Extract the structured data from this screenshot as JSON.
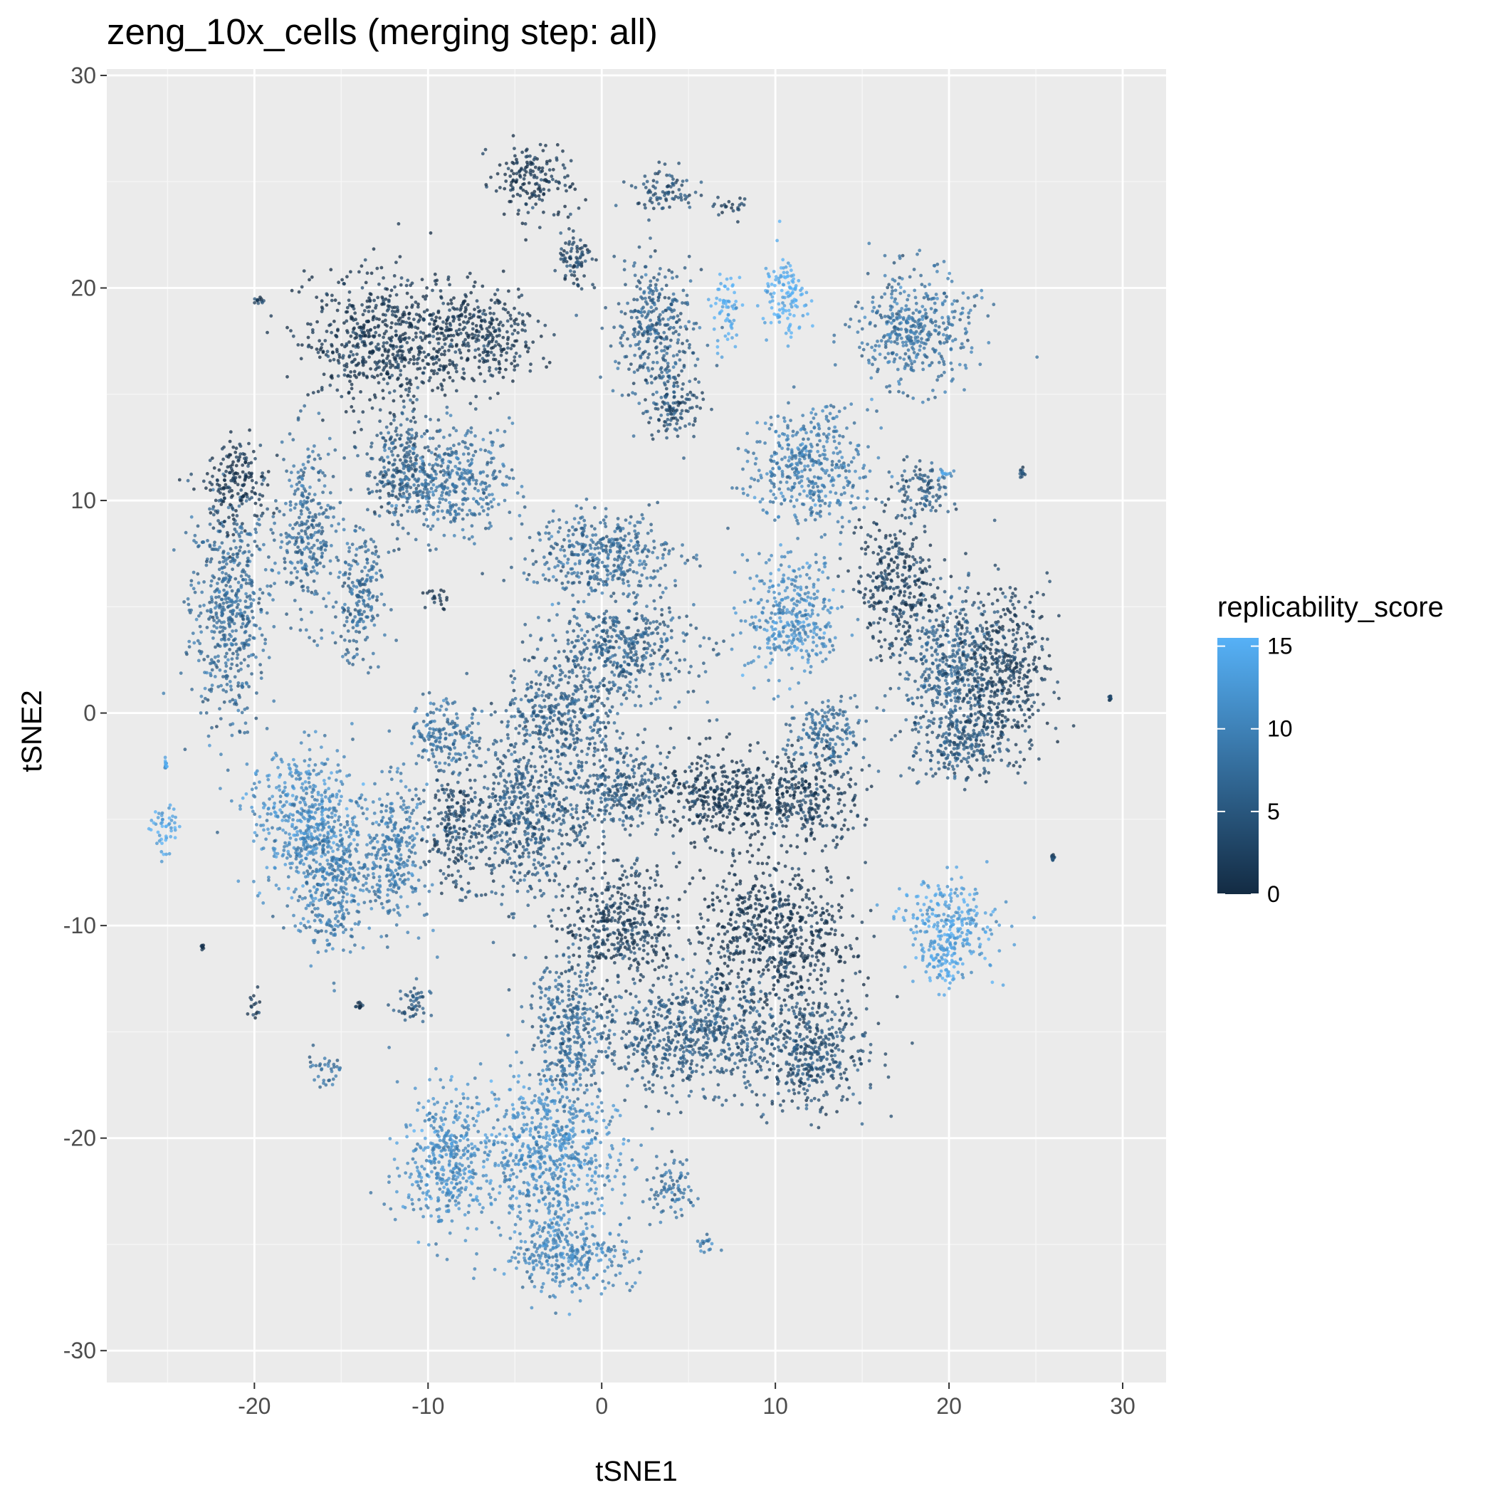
{
  "chart_data": {
    "type": "scatter",
    "title": "zeng_10x_cells (merging step: all)",
    "xlabel": "tSNE1",
    "ylabel": "tSNE2",
    "xlim": [
      -28.5,
      32.5
    ],
    "ylim": [
      -31.5,
      30.3
    ],
    "x_ticks": [
      -20,
      -10,
      0,
      10,
      20,
      30
    ],
    "x_tick_labels": [
      "-20",
      "-10",
      "0",
      "10",
      "20",
      "30"
    ],
    "y_ticks": [
      -30,
      -20,
      -10,
      0,
      10,
      20,
      30
    ],
    "y_tick_labels": [
      "-30",
      "-20",
      "-10",
      "0",
      "10",
      "20",
      "30"
    ],
    "grid": true,
    "background": "#ebebeb",
    "legend": {
      "title": "replicability_score",
      "position": "right",
      "type": "colorbar",
      "range": [
        0,
        15.5
      ],
      "ticks": [
        0,
        5,
        10,
        15
      ],
      "tick_labels": [
        "0",
        "5",
        "10",
        "15"
      ],
      "low_color": "#132b43",
      "high_color": "#56b1f7"
    },
    "clusters": [
      {
        "x": -25.2,
        "y": -5.4,
        "spread": [
          0.8,
          1.1
        ],
        "score": 14
      },
      {
        "x": -25.1,
        "y": -2.5,
        "spread": [
          0.1,
          0.3
        ],
        "score": 13
      },
      {
        "x": -21.5,
        "y": 5.0,
        "spread": [
          2.0,
          4.8
        ],
        "score": 7
      },
      {
        "x": -21.0,
        "y": 10.8,
        "spread": [
          1.6,
          2.0
        ],
        "score": 1
      },
      {
        "x": -17.0,
        "y": 8.5,
        "spread": [
          1.5,
          3.5
        ],
        "score": 7
      },
      {
        "x": -12.5,
        "y": 17.5,
        "spread": [
          4.0,
          2.8
        ],
        "score": 1
      },
      {
        "x": -7.0,
        "y": 17.8,
        "spread": [
          3.0,
          2.0
        ],
        "score": 1
      },
      {
        "x": -11.5,
        "y": 11.5,
        "spread": [
          2.0,
          2.5
        ],
        "score": 5
      },
      {
        "x": -8.5,
        "y": 11.0,
        "spread": [
          3.0,
          2.2
        ],
        "score": 8
      },
      {
        "x": -14.0,
        "y": 5.5,
        "spread": [
          1.3,
          2.8
        ],
        "score": 7
      },
      {
        "x": -9.5,
        "y": 5.4,
        "spread": [
          0.6,
          0.6
        ],
        "score": 1
      },
      {
        "x": -17.0,
        "y": -5.0,
        "spread": [
          3.0,
          3.0
        ],
        "score": 11
      },
      {
        "x": -15.5,
        "y": -8.0,
        "spread": [
          2.0,
          3.0
        ],
        "score": 9
      },
      {
        "x": -12.0,
        "y": -6.5,
        "spread": [
          1.8,
          3.0
        ],
        "score": 9
      },
      {
        "x": -8.5,
        "y": -5.5,
        "spread": [
          1.5,
          2.5
        ],
        "score": 3
      },
      {
        "x": -9.0,
        "y": -1.0,
        "spread": [
          2.0,
          1.5
        ],
        "score": 8
      },
      {
        "x": -19.8,
        "y": 19.4,
        "spread": [
          0.3,
          0.15
        ],
        "score": 2
      },
      {
        "x": -23.0,
        "y": -11.0,
        "spread": [
          0.1,
          0.1
        ],
        "score": 1
      },
      {
        "x": -20.0,
        "y": -13.8,
        "spread": [
          0.4,
          0.7
        ],
        "score": 2
      },
      {
        "x": -16.0,
        "y": -16.8,
        "spread": [
          0.9,
          0.7
        ],
        "score": 8
      },
      {
        "x": -14.0,
        "y": -13.8,
        "spread": [
          0.2,
          0.2
        ],
        "score": 1
      },
      {
        "x": -11.0,
        "y": -13.7,
        "spread": [
          1.0,
          0.9
        ],
        "score": 5
      },
      {
        "x": -4.0,
        "y": 25.0,
        "spread": [
          2.0,
          1.5
        ],
        "score": 1
      },
      {
        "x": -1.5,
        "y": 21.5,
        "spread": [
          1.0,
          1.5
        ],
        "score": 3
      },
      {
        "x": 3.0,
        "y": 18.0,
        "spread": [
          2.0,
          3.0
        ],
        "score": 6
      },
      {
        "x": 4.2,
        "y": 14.5,
        "spread": [
          1.5,
          1.5
        ],
        "score": 4
      },
      {
        "x": 3.7,
        "y": 24.5,
        "spread": [
          1.5,
          1.0
        ],
        "score": 4
      },
      {
        "x": 7.5,
        "y": 23.8,
        "spread": [
          1.0,
          0.4
        ],
        "score": 3
      },
      {
        "x": 7.2,
        "y": 19.0,
        "spread": [
          0.7,
          1.6
        ],
        "score": 15
      },
      {
        "x": 10.5,
        "y": 19.5,
        "spread": [
          1.1,
          2.0
        ],
        "score": 15
      },
      {
        "x": 18.0,
        "y": 18.0,
        "spread": [
          3.0,
          2.5
        ],
        "score": 8
      },
      {
        "x": 12.0,
        "y": 11.5,
        "spread": [
          3.0,
          2.5
        ],
        "score": 9
      },
      {
        "x": 11.0,
        "y": 4.5,
        "spread": [
          2.5,
          2.5
        ],
        "score": 11
      },
      {
        "x": 17.0,
        "y": 6.0,
        "spread": [
          2.0,
          3.0
        ],
        "score": 2
      },
      {
        "x": 18.5,
        "y": 10.5,
        "spread": [
          1.5,
          1.2
        ],
        "score": 5
      },
      {
        "x": 19.8,
        "y": 11.3,
        "spread": [
          0.5,
          0.2
        ],
        "score": 13
      },
      {
        "x": 20.0,
        "y": 2.0,
        "spread": [
          2.5,
          3.0
        ],
        "score": 6
      },
      {
        "x": 23.0,
        "y": 2.0,
        "spread": [
          2.5,
          3.5
        ],
        "score": 2
      },
      {
        "x": 20.5,
        "y": -1.5,
        "spread": [
          2.5,
          1.5
        ],
        "score": 5
      },
      {
        "x": 29.3,
        "y": 0.7,
        "spread": [
          0.1,
          0.1
        ],
        "score": 4
      },
      {
        "x": 20.0,
        "y": -10.0,
        "spread": [
          2.5,
          2.0
        ],
        "score": 13
      },
      {
        "x": 19.5,
        "y": -12.0,
        "spread": [
          1.0,
          1.0
        ],
        "score": 14
      },
      {
        "x": 24.2,
        "y": 11.3,
        "spread": [
          0.15,
          0.2
        ],
        "score": 4
      },
      {
        "x": 26.0,
        "y": -6.8,
        "spread": [
          0.1,
          0.1
        ],
        "score": 3
      },
      {
        "x": 0.0,
        "y": 7.5,
        "spread": [
          4.0,
          1.8
        ],
        "score": 7
      },
      {
        "x": 1.0,
        "y": 3.0,
        "spread": [
          4.0,
          2.0
        ],
        "score": 6
      },
      {
        "x": -2.5,
        "y": 0.0,
        "spread": [
          3.0,
          2.0
        ],
        "score": 6
      },
      {
        "x": -4.5,
        "y": -5.0,
        "spread": [
          3.0,
          3.5
        ],
        "score": 5
      },
      {
        "x": 1.0,
        "y": -3.5,
        "spread": [
          3.0,
          2.0
        ],
        "score": 5
      },
      {
        "x": 7.0,
        "y": -4.0,
        "spread": [
          3.5,
          2.0
        ],
        "score": 1
      },
      {
        "x": 12.0,
        "y": -4.0,
        "spread": [
          2.5,
          2.0
        ],
        "score": 2
      },
      {
        "x": 13.0,
        "y": -1.0,
        "spread": [
          2.0,
          1.5
        ],
        "score": 7
      },
      {
        "x": 1.0,
        "y": -10.0,
        "spread": [
          3.0,
          2.5
        ],
        "score": 2
      },
      {
        "x": 10.0,
        "y": -10.5,
        "spread": [
          4.0,
          3.0
        ],
        "score": 1
      },
      {
        "x": 5.0,
        "y": -15.0,
        "spread": [
          5.0,
          2.5
        ],
        "score": 5
      },
      {
        "x": 12.0,
        "y": -16.0,
        "spread": [
          3.0,
          2.5
        ],
        "score": 4
      },
      {
        "x": -2.0,
        "y": -15.0,
        "spread": [
          2.0,
          3.0
        ],
        "score": 7
      },
      {
        "x": -9.0,
        "y": -21.0,
        "spread": [
          2.5,
          3.0
        ],
        "score": 11
      },
      {
        "x": -3.0,
        "y": -21.0,
        "spread": [
          3.5,
          3.5
        ],
        "score": 11
      },
      {
        "x": -2.0,
        "y": -25.5,
        "spread": [
          3.5,
          1.5
        ],
        "score": 10
      },
      {
        "x": 4.0,
        "y": -22.5,
        "spread": [
          1.0,
          1.5
        ],
        "score": 8
      },
      {
        "x": 5.8,
        "y": -25.0,
        "spread": [
          0.6,
          0.5
        ],
        "score": 9
      }
    ]
  }
}
